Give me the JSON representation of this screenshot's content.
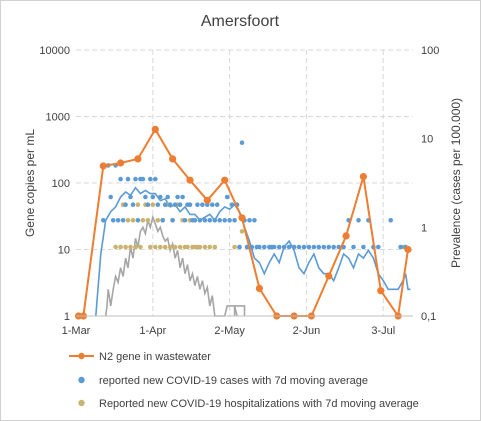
{
  "chart_data": {
    "type": "line",
    "title": "Amersfoort",
    "ylabel_left": "Gene copies per mL",
    "ylabel_right": "Prevalence (cases per 100.000)",
    "x_tick_labels": [
      "1-Mar",
      "1-Apr",
      "2-May",
      "2-Jun",
      "3-Jul"
    ],
    "x_tick_days": [
      0,
      31,
      62,
      93,
      124
    ],
    "x_range_days": [
      0,
      136
    ],
    "y_left_scale": "log",
    "y_left_ticks": [
      "1",
      "10",
      "100",
      "1000",
      "10000"
    ],
    "y_left_range": [
      1,
      10000
    ],
    "y_right_scale": "log",
    "y_right_ticks": [
      "0,1",
      "1",
      "10",
      "100"
    ],
    "y_right_range": [
      0.1,
      100
    ],
    "grid": "dashed",
    "legend_position": "bottom",
    "series": [
      {
        "name": "N2 gene in wastewater",
        "axis": "left",
        "style": "line-with-markers",
        "color": "#ED7D31",
        "points": [
          {
            "x": 1,
            "y": 1
          },
          {
            "x": 3,
            "y": 1
          },
          {
            "x": 11,
            "y": 180
          },
          {
            "x": 18,
            "y": 200
          },
          {
            "x": 25,
            "y": 230
          },
          {
            "x": 32,
            "y": 640
          },
          {
            "x": 39,
            "y": 230
          },
          {
            "x": 46,
            "y": 110
          },
          {
            "x": 53,
            "y": 55
          },
          {
            "x": 60,
            "y": 110
          },
          {
            "x": 67,
            "y": 30
          },
          {
            "x": 74,
            "y": 2.6
          },
          {
            "x": 81,
            "y": 1
          },
          {
            "x": 88,
            "y": 1
          },
          {
            "x": 95,
            "y": 1
          },
          {
            "x": 102,
            "y": 4
          },
          {
            "x": 109,
            "y": 16
          },
          {
            "x": 116,
            "y": 125
          },
          {
            "x": 123,
            "y": 2.4
          },
          {
            "x": 130,
            "y": 1
          },
          {
            "x": 134,
            "y": 10
          }
        ]
      },
      {
        "name": "reported new COVID-19 cases with 7d moving average",
        "axis": "right",
        "style": "dots-with-line",
        "color": "#5B9BD5",
        "dots": [
          {
            "x": 11,
            "y": 1.2
          },
          {
            "x": 13,
            "y": 5
          },
          {
            "x": 14,
            "y": 2.2
          },
          {
            "x": 15,
            "y": 1.2
          },
          {
            "x": 16,
            "y": 5
          },
          {
            "x": 17,
            "y": 1.2
          },
          {
            "x": 18,
            "y": 3.5
          },
          {
            "x": 19,
            "y": 1.2
          },
          {
            "x": 20,
            "y": 1.8
          },
          {
            "x": 21,
            "y": 3.5
          },
          {
            "x": 22,
            "y": 2.2
          },
          {
            "x": 23,
            "y": 1.8
          },
          {
            "x": 24,
            "y": 3.5
          },
          {
            "x": 25,
            "y": 1.2
          },
          {
            "x": 26,
            "y": 3.5
          },
          {
            "x": 27,
            "y": 3.5
          },
          {
            "x": 28,
            "y": 2.2
          },
          {
            "x": 29,
            "y": 1.8
          },
          {
            "x": 30,
            "y": 3.5
          },
          {
            "x": 31,
            "y": 2.2
          },
          {
            "x": 32,
            "y": 3.5
          },
          {
            "x": 33,
            "y": 1.8
          },
          {
            "x": 34,
            "y": 2.2
          },
          {
            "x": 35,
            "y": 1.2
          },
          {
            "x": 36,
            "y": 1.8
          },
          {
            "x": 37,
            "y": 2.2
          },
          {
            "x": 38,
            "y": 1.8
          },
          {
            "x": 39,
            "y": 1.2
          },
          {
            "x": 40,
            "y": 1.8
          },
          {
            "x": 41,
            "y": 2.2
          },
          {
            "x": 42,
            "y": 1.8
          },
          {
            "x": 43,
            "y": 2.2
          },
          {
            "x": 44,
            "y": 1.2
          },
          {
            "x": 45,
            "y": 1.8
          },
          {
            "x": 46,
            "y": 1.8
          },
          {
            "x": 47,
            "y": 1.2
          },
          {
            "x": 48,
            "y": 1.2
          },
          {
            "x": 49,
            "y": 1.8
          },
          {
            "x": 50,
            "y": 1.2
          },
          {
            "x": 51,
            "y": 1.8
          },
          {
            "x": 52,
            "y": 1.2
          },
          {
            "x": 53,
            "y": 1.8
          },
          {
            "x": 54,
            "y": 1.2
          },
          {
            "x": 55,
            "y": 1.8
          },
          {
            "x": 56,
            "y": 1.2
          },
          {
            "x": 57,
            "y": 1.8
          },
          {
            "x": 58,
            "y": 1.2
          },
          {
            "x": 60,
            "y": 1.2
          },
          {
            "x": 61,
            "y": 2.2
          },
          {
            "x": 62,
            "y": 1.2
          },
          {
            "x": 63,
            "y": 1.8
          },
          {
            "x": 64,
            "y": 1.2
          },
          {
            "x": 65,
            "y": 1.8
          },
          {
            "x": 66,
            "y": 0.6
          },
          {
            "x": 67,
            "y": 9
          },
          {
            "x": 68,
            "y": 1.2
          },
          {
            "x": 69,
            "y": 0.6
          },
          {
            "x": 70,
            "y": 1.2
          },
          {
            "x": 71,
            "y": 0.6
          },
          {
            "x": 72,
            "y": 1.2
          },
          {
            "x": 73,
            "y": 0.6
          },
          {
            "x": 74,
            "y": 0.6
          },
          {
            "x": 76,
            "y": 0.6
          },
          {
            "x": 78,
            "y": 0.6
          },
          {
            "x": 79,
            "y": 0.6
          },
          {
            "x": 80,
            "y": 0.6
          },
          {
            "x": 82,
            "y": 0.6
          },
          {
            "x": 84,
            "y": 0.6
          },
          {
            "x": 86,
            "y": 0.6
          },
          {
            "x": 88,
            "y": 0.6
          },
          {
            "x": 90,
            "y": 0.6
          },
          {
            "x": 92,
            "y": 0.6
          },
          {
            "x": 94,
            "y": 0.6
          },
          {
            "x": 96,
            "y": 0.6
          },
          {
            "x": 98,
            "y": 0.6
          },
          {
            "x": 100,
            "y": 0.6
          },
          {
            "x": 102,
            "y": 0.6
          },
          {
            "x": 104,
            "y": 0.6
          },
          {
            "x": 106,
            "y": 0.6
          },
          {
            "x": 108,
            "y": 0.6
          },
          {
            "x": 110,
            "y": 1.2
          },
          {
            "x": 112,
            "y": 0.6
          },
          {
            "x": 114,
            "y": 1.2
          },
          {
            "x": 116,
            "y": 0.6
          },
          {
            "x": 118,
            "y": 1.2
          },
          {
            "x": 120,
            "y": 0.6
          },
          {
            "x": 122,
            "y": 0.6
          },
          {
            "x": 127,
            "y": 1.2
          },
          {
            "x": 131,
            "y": 0.6
          },
          {
            "x": 133,
            "y": 0.6
          }
        ],
        "moving_average": [
          {
            "x": 8,
            "y": 0.1
          },
          {
            "x": 10,
            "y": 0.5
          },
          {
            "x": 12,
            "y": 1.2
          },
          {
            "x": 14,
            "y": 1.5
          },
          {
            "x": 16,
            "y": 1.7
          },
          {
            "x": 18,
            "y": 2.2
          },
          {
            "x": 20,
            "y": 2.5
          },
          {
            "x": 22,
            "y": 2.3
          },
          {
            "x": 24,
            "y": 2.8
          },
          {
            "x": 26,
            "y": 2.4
          },
          {
            "x": 28,
            "y": 2.6
          },
          {
            "x": 30,
            "y": 2.4
          },
          {
            "x": 32,
            "y": 2.4
          },
          {
            "x": 34,
            "y": 2.0
          },
          {
            "x": 36,
            "y": 2.1
          },
          {
            "x": 38,
            "y": 1.7
          },
          {
            "x": 40,
            "y": 1.8
          },
          {
            "x": 42,
            "y": 1.5
          },
          {
            "x": 44,
            "y": 1.7
          },
          {
            "x": 46,
            "y": 1.4
          },
          {
            "x": 48,
            "y": 1.4
          },
          {
            "x": 50,
            "y": 1.2
          },
          {
            "x": 52,
            "y": 1.3
          },
          {
            "x": 54,
            "y": 1.4
          },
          {
            "x": 56,
            "y": 1.2
          },
          {
            "x": 58,
            "y": 1.5
          },
          {
            "x": 60,
            "y": 1.7
          },
          {
            "x": 62,
            "y": 1.6
          },
          {
            "x": 64,
            "y": 1.8
          },
          {
            "x": 66,
            "y": 1.5
          },
          {
            "x": 68,
            "y": 1.0
          },
          {
            "x": 70,
            "y": 0.7
          },
          {
            "x": 72,
            "y": 0.45
          },
          {
            "x": 74,
            "y": 0.4
          },
          {
            "x": 76,
            "y": 0.3
          },
          {
            "x": 78,
            "y": 0.4
          },
          {
            "x": 80,
            "y": 0.5
          },
          {
            "x": 82,
            "y": 0.4
          },
          {
            "x": 84,
            "y": 0.6
          },
          {
            "x": 86,
            "y": 0.7
          },
          {
            "x": 88,
            "y": 0.55
          },
          {
            "x": 90,
            "y": 0.35
          },
          {
            "x": 92,
            "y": 0.3
          },
          {
            "x": 94,
            "y": 0.4
          },
          {
            "x": 96,
            "y": 0.5
          },
          {
            "x": 98,
            "y": 0.35
          },
          {
            "x": 100,
            "y": 0.3
          },
          {
            "x": 102,
            "y": 0.3
          },
          {
            "x": 104,
            "y": 0.25
          },
          {
            "x": 106,
            "y": 0.35
          },
          {
            "x": 108,
            "y": 0.5
          },
          {
            "x": 110,
            "y": 0.45
          },
          {
            "x": 112,
            "y": 0.35
          },
          {
            "x": 114,
            "y": 0.5
          },
          {
            "x": 116,
            "y": 0.45
          },
          {
            "x": 118,
            "y": 0.55
          },
          {
            "x": 120,
            "y": 0.45
          },
          {
            "x": 122,
            "y": 0.3
          },
          {
            "x": 124,
            "y": 0.25
          },
          {
            "x": 126,
            "y": 0.2
          },
          {
            "x": 128,
            "y": 0.2
          },
          {
            "x": 130,
            "y": 0.2
          },
          {
            "x": 132,
            "y": 0.25
          },
          {
            "x": 133,
            "y": 0.3
          },
          {
            "x": 134,
            "y": 0.2
          },
          {
            "x": 135,
            "y": 0.2
          }
        ]
      },
      {
        "name": "Reported new COVID-19 hospitalizations with 7d moving average",
        "axis": "right",
        "style": "dots-with-line",
        "color": "#C9B36E",
        "line_color": "#A6A6A6",
        "dots": [
          {
            "x": 16,
            "y": 0.6
          },
          {
            "x": 18,
            "y": 0.6
          },
          {
            "x": 19,
            "y": 1.8
          },
          {
            "x": 20,
            "y": 0.6
          },
          {
            "x": 21,
            "y": 1.2
          },
          {
            "x": 22,
            "y": 0.6
          },
          {
            "x": 23,
            "y": 1.2
          },
          {
            "x": 24,
            "y": 0.6
          },
          {
            "x": 25,
            "y": 1.8
          },
          {
            "x": 26,
            "y": 0.6
          },
          {
            "x": 27,
            "y": 1.2
          },
          {
            "x": 28,
            "y": 1.8
          },
          {
            "x": 29,
            "y": 1.2
          },
          {
            "x": 30,
            "y": 0.6
          },
          {
            "x": 31,
            "y": 1.8
          },
          {
            "x": 32,
            "y": 0.6
          },
          {
            "x": 33,
            "y": 1.2
          },
          {
            "x": 34,
            "y": 0.6
          },
          {
            "x": 35,
            "y": 1.2
          },
          {
            "x": 36,
            "y": 0.6
          },
          {
            "x": 37,
            "y": 1.8
          },
          {
            "x": 38,
            "y": 0.6
          },
          {
            "x": 39,
            "y": 1.2
          },
          {
            "x": 40,
            "y": 0.6
          },
          {
            "x": 41,
            "y": 1.8
          },
          {
            "x": 42,
            "y": 0.6
          },
          {
            "x": 43,
            "y": 1.2
          },
          {
            "x": 44,
            "y": 0.6
          },
          {
            "x": 45,
            "y": 0.6
          },
          {
            "x": 46,
            "y": 1.2
          },
          {
            "x": 47,
            "y": 0.6
          },
          {
            "x": 48,
            "y": 0.6
          },
          {
            "x": 49,
            "y": 0.6
          },
          {
            "x": 50,
            "y": 0.6
          },
          {
            "x": 52,
            "y": 0.6
          },
          {
            "x": 54,
            "y": 0.6
          },
          {
            "x": 56,
            "y": 0.6
          },
          {
            "x": 64,
            "y": 0.6
          },
          {
            "x": 66,
            "y": 0.6
          },
          {
            "x": 67,
            "y": 0.9
          },
          {
            "x": 132,
            "y": 0.6
          }
        ],
        "moving_average": [
          {
            "x": 12,
            "y": 0.1
          },
          {
            "x": 12.5,
            "y": 0.13
          },
          {
            "x": 13,
            "y": 0.2
          },
          {
            "x": 14,
            "y": 0.13
          },
          {
            "x": 15,
            "y": 0.2
          },
          {
            "x": 16,
            "y": 0.28
          },
          {
            "x": 17,
            "y": 0.24
          },
          {
            "x": 18,
            "y": 0.35
          },
          {
            "x": 19,
            "y": 0.28
          },
          {
            "x": 20,
            "y": 0.45
          },
          {
            "x": 21,
            "y": 0.35
          },
          {
            "x": 22,
            "y": 0.6
          },
          {
            "x": 23,
            "y": 0.45
          },
          {
            "x": 24,
            "y": 0.75
          },
          {
            "x": 25,
            "y": 0.6
          },
          {
            "x": 26,
            "y": 0.9
          },
          {
            "x": 27,
            "y": 1.0
          },
          {
            "x": 28,
            "y": 0.85
          },
          {
            "x": 29,
            "y": 1.2
          },
          {
            "x": 30,
            "y": 1.0
          },
          {
            "x": 31,
            "y": 1.3
          },
          {
            "x": 32,
            "y": 1.1
          },
          {
            "x": 33,
            "y": 0.9
          },
          {
            "x": 34,
            "y": 1.0
          },
          {
            "x": 35,
            "y": 0.8
          },
          {
            "x": 36,
            "y": 0.7
          },
          {
            "x": 37,
            "y": 0.75
          },
          {
            "x": 38,
            "y": 0.55
          },
          {
            "x": 39,
            "y": 0.65
          },
          {
            "x": 40,
            "y": 0.45
          },
          {
            "x": 41,
            "y": 0.55
          },
          {
            "x": 42,
            "y": 0.35
          },
          {
            "x": 43,
            "y": 0.45
          },
          {
            "x": 44,
            "y": 0.3
          },
          {
            "x": 45,
            "y": 0.38
          },
          {
            "x": 46,
            "y": 0.25
          },
          {
            "x": 47,
            "y": 0.3
          },
          {
            "x": 48,
            "y": 0.22
          },
          {
            "x": 49,
            "y": 0.28
          },
          {
            "x": 50,
            "y": 0.2
          },
          {
            "x": 51,
            "y": 0.25
          },
          {
            "x": 52,
            "y": 0.18
          },
          {
            "x": 53,
            "y": 0.21
          },
          {
            "x": 54,
            "y": 0.13
          },
          {
            "x": 55,
            "y": 0.17
          },
          {
            "x": 56,
            "y": 0.1
          },
          {
            "x": 60,
            "y": 0.1
          },
          {
            "x": 61,
            "y": 0.13
          },
          {
            "x": 64,
            "y": 0.13
          },
          {
            "x": 65,
            "y": 0.1
          }
        ]
      }
    ]
  }
}
